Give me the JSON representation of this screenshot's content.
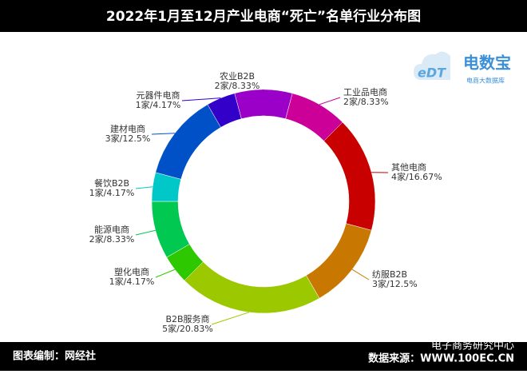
{
  "title": "2022年1月至12月产业电商“死亡”名单行业分布图",
  "logo": {
    "mark": "eDT",
    "name": "电数宝",
    "tagline": "电商大数据库"
  },
  "footer": {
    "left": "图表编制：网经社",
    "right": "数据来源：WWW.100EC.CN",
    "watermark": "电子商务研究中心"
  },
  "chart_data": {
    "type": "donut",
    "categories": [
      "农业B2B",
      "工业品电商",
      "其他电商",
      "纺服B2B",
      "B2B服务商",
      "塑化电商",
      "能源电商",
      "餐饮B2B",
      "建材电商",
      "元器件电商"
    ],
    "values": [
      2,
      2,
      4,
      3,
      5,
      1,
      2,
      1,
      3,
      1
    ],
    "value_labels": [
      "2家/8.33%",
      "2家/8.33%",
      "4家/16.67%",
      "3家/12.5%",
      "5家/20.83%",
      "1家/4.17%",
      "2家/8.33%",
      "1家/4.17%",
      "3家/12.5%",
      "1家/4.17%"
    ],
    "colors": [
      "#9b00c8",
      "#cc0099",
      "#c80000",
      "#c87800",
      "#9cc800",
      "#2ec800",
      "#00c850",
      "#00c8c8",
      "#0050c8",
      "#3200c8"
    ]
  }
}
